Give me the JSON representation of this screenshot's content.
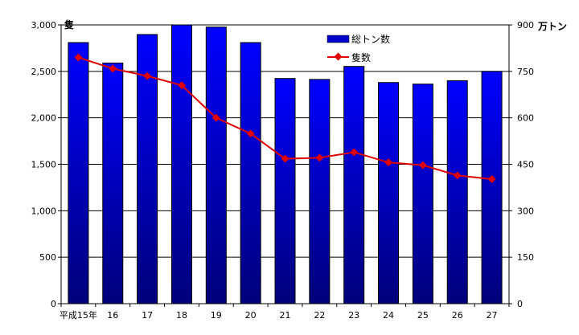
{
  "chart_data": {
    "type": "bar",
    "categories": [
      "平成15年",
      "16",
      "17",
      "18",
      "19",
      "20",
      "21",
      "22",
      "23",
      "24",
      "25",
      "26",
      "27"
    ],
    "series": [
      {
        "name": "総トン数",
        "type": "bar",
        "axis": "right",
        "color": "#0000cc",
        "values": [
          843,
          777,
          869,
          900,
          893,
          843,
          727,
          724,
          766,
          714,
          709,
          720,
          750
        ]
      },
      {
        "name": "隻数",
        "type": "line",
        "axis": "left",
        "color": "#e00000",
        "values": [
          2650,
          2530,
          2450,
          2350,
          2000,
          1830,
          1560,
          1570,
          1630,
          1520,
          1490,
          1380,
          1340
        ]
      }
    ],
    "ylim_left": [
      0,
      3000
    ],
    "yticks_left": [
      "0",
      "500",
      "1,000",
      "1,500",
      "2,000",
      "2,500",
      "3,000"
    ],
    "ylabel_left": "隻",
    "ylim_right": [
      0,
      900
    ],
    "yticks_right": [
      "0",
      "150",
      "300",
      "450",
      "600",
      "750",
      "900"
    ],
    "ylabel_right": "万トン",
    "grid": true,
    "legend_position": "top-right"
  }
}
